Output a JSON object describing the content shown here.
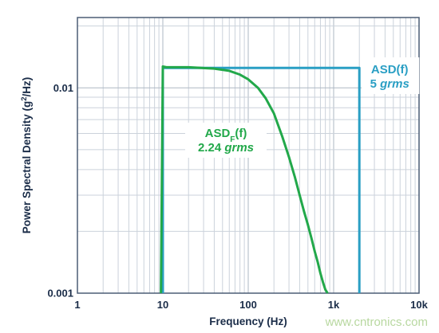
{
  "chart_data": {
    "type": "line",
    "xlabel": "Frequency (Hz)",
    "ylabel_parts": [
      "Power Spectral Density (g",
      "2",
      "/Hz)"
    ],
    "x_scale": "log",
    "y_scale": "log",
    "xlim": [
      1,
      10000
    ],
    "ylim": [
      0.001,
      0.022
    ],
    "grid": true,
    "x_ticks": [
      {
        "value": 1,
        "label": "1"
      },
      {
        "value": 10,
        "label": "10"
      },
      {
        "value": 100,
        "label": "100"
      },
      {
        "value": 1000,
        "label": "1k"
      },
      {
        "value": 10000,
        "label": "10k"
      }
    ],
    "y_ticks": [
      {
        "value": 0.001,
        "label": "0.001"
      },
      {
        "value": 0.01,
        "label": "0.01"
      }
    ],
    "series": [
      {
        "key": "asd",
        "color": "#2a9fc4",
        "label_main": "ASD(f)",
        "label_rms_value": "5",
        "label_rms_unit": "grms",
        "x": [
          10,
          10,
          2000,
          2000
        ],
        "y": [
          0.001,
          0.0125,
          0.0125,
          0.001
        ]
      },
      {
        "key": "asdf",
        "color": "#22a84a",
        "label_main": "ASD",
        "label_sub": "F",
        "label_suffix": "(f)",
        "label_rms_value": "2.24",
        "label_rms_unit": "grms",
        "x": [
          9.5,
          10,
          11,
          20,
          40,
          60,
          80,
          100,
          130,
          160,
          200,
          250,
          300,
          350,
          400,
          450,
          500,
          550,
          600,
          650,
          700,
          750,
          800,
          850
        ],
        "y": [
          0.001,
          0.0127,
          0.0126,
          0.0126,
          0.0124,
          0.0121,
          0.0116,
          0.011,
          0.01,
          0.0089,
          0.0075,
          0.0058,
          0.0046,
          0.0037,
          0.003,
          0.0025,
          0.00215,
          0.00185,
          0.0016,
          0.00142,
          0.00125,
          0.00113,
          0.00104,
          0.001
        ]
      }
    ]
  },
  "watermark": "www.cntronics.com"
}
